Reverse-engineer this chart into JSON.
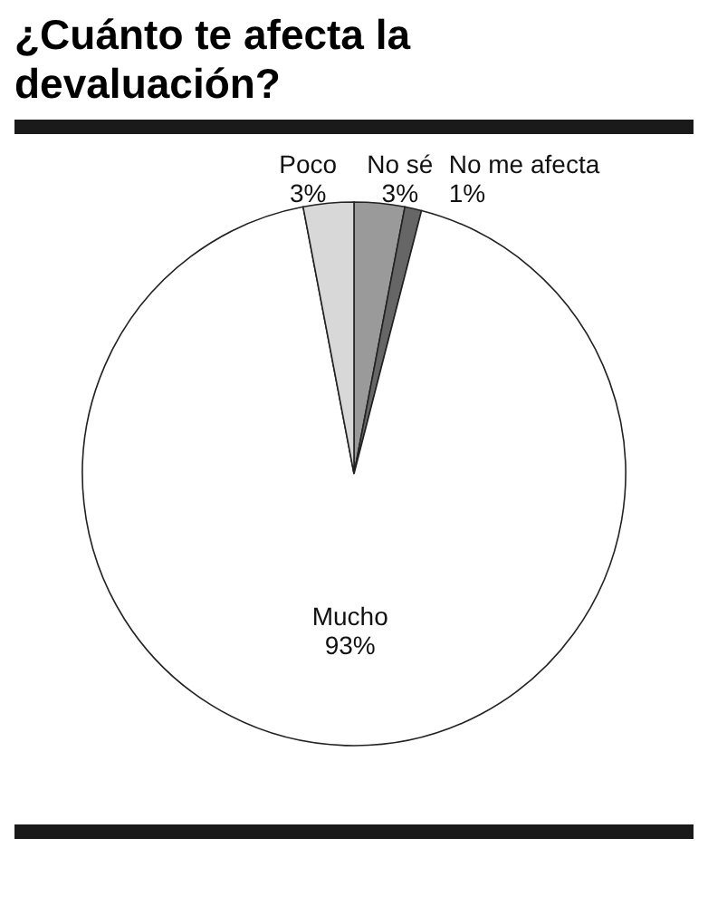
{
  "chart_data": {
    "type": "pie",
    "title": "¿Cuánto te afecta la devaluación?",
    "categories": [
      "No sé",
      "No me afecta",
      "Mucho",
      "Poco"
    ],
    "values": [
      3,
      1,
      93,
      3
    ],
    "value_labels": [
      "3%",
      "1%",
      "93%",
      "3%"
    ],
    "colors": [
      "#9a9a9a",
      "#666666",
      "#ffffff",
      "#d8d8d8"
    ],
    "legend": false
  }
}
